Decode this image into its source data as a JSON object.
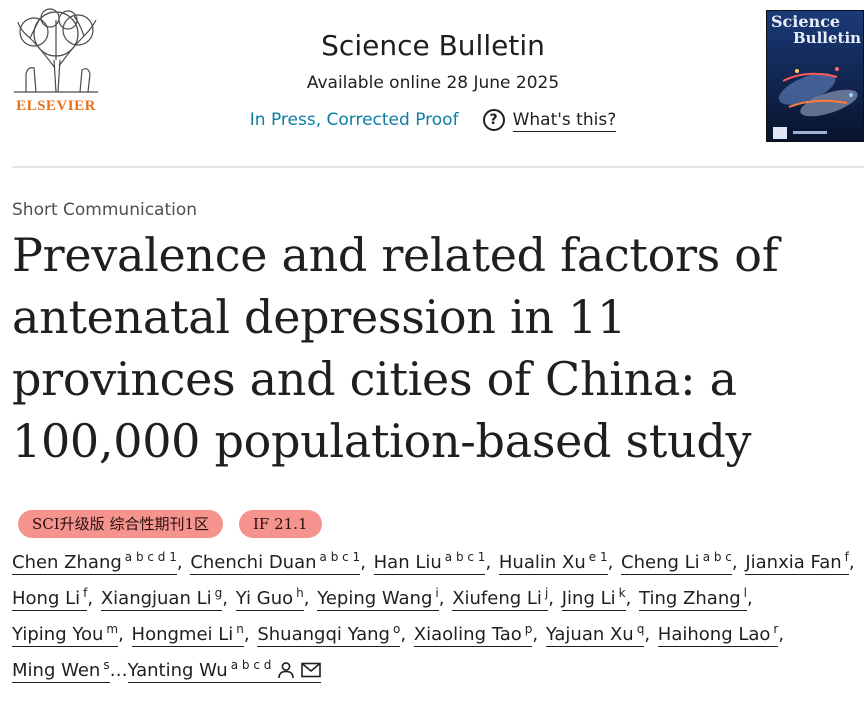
{
  "header": {
    "publisher": "ELSEVIER",
    "journal_title": "Science Bulletin",
    "available_online": "Available online 28 June 2025",
    "status_link": "In Press, Corrected Proof",
    "whats_this": "What's this?",
    "cover": {
      "line1": "Science",
      "line2": "Bulletin"
    }
  },
  "article": {
    "type": "Short Communication",
    "title": "Prevalence and related factors of antenatal depression in 11 provinces and cities of China: a 100,000 population-based study",
    "badges": [
      "SCI升级版 综合性期刊1区",
      "IF 21.1"
    ],
    "authors": [
      {
        "name": "Chen Zhang",
        "sup": "a b c d 1"
      },
      {
        "name": "Chenchi Duan",
        "sup": "a b c 1"
      },
      {
        "name": "Han Liu",
        "sup": "a b c 1"
      },
      {
        "name": "Hualin Xu",
        "sup": "e 1"
      },
      {
        "name": "Cheng Li",
        "sup": "a b c"
      },
      {
        "name": "Jianxia Fan",
        "sup": "f"
      },
      {
        "name": "Hong Li",
        "sup": "f"
      },
      {
        "name": "Xiangjuan Li",
        "sup": "g"
      },
      {
        "name": "Yi Guo",
        "sup": "h"
      },
      {
        "name": "Yeping Wang",
        "sup": "i"
      },
      {
        "name": "Xiufeng Li",
        "sup": "j"
      },
      {
        "name": "Jing Li",
        "sup": "k"
      },
      {
        "name": "Ting Zhang",
        "sup": "l"
      },
      {
        "name": "Yiping You",
        "sup": "m"
      },
      {
        "name": "Hongmei Li",
        "sup": "n"
      },
      {
        "name": "Shuangqi Yang",
        "sup": "o"
      },
      {
        "name": "Xiaoling Tao",
        "sup": "p"
      },
      {
        "name": "Yajuan Xu",
        "sup": "q"
      },
      {
        "name": "Haihong Lao",
        "sup": "r"
      },
      {
        "name": "Ming Wen",
        "sup": "s"
      },
      {
        "name": "Yanting Wu",
        "sup": "a b c d"
      }
    ],
    "ellipsis": "…"
  },
  "colors": {
    "link": "#0c7da6",
    "publisher_orange": "#e9711c",
    "badge_bg": "#f5948f",
    "cover_bg": "#0c1e44"
  },
  "icons": [
    "elsevier-tree-logo",
    "help-circle-icon",
    "person-icon",
    "envelope-icon"
  ]
}
